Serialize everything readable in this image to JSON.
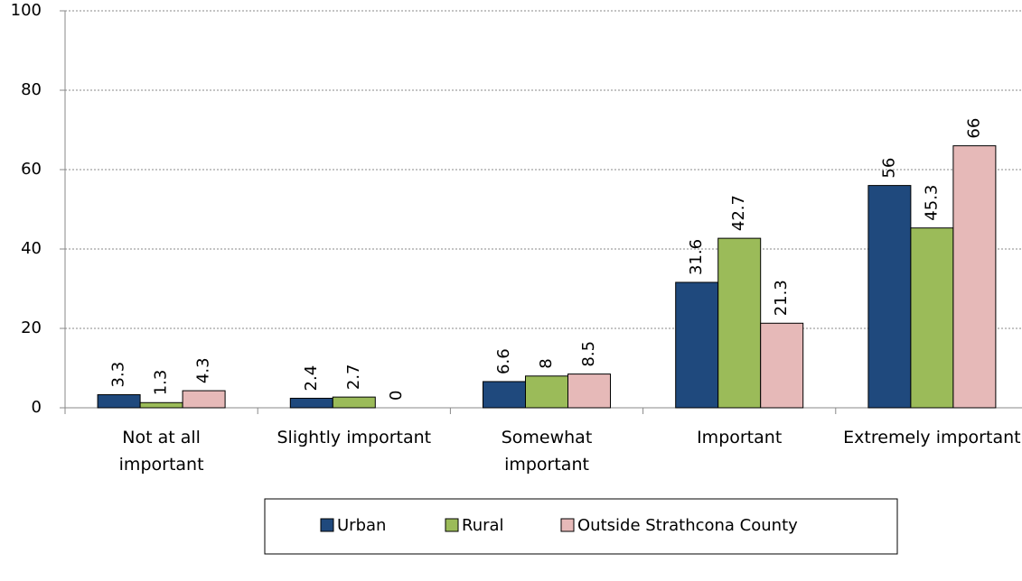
{
  "chart_data": {
    "type": "bar",
    "categories": [
      "Not at all important",
      "Slightly important",
      "Somewhat important",
      "Important",
      "Extremely important"
    ],
    "series": [
      {
        "name": "Urban",
        "color": "#1f497d",
        "values": [
          3.3,
          2.4,
          6.6,
          31.6,
          56
        ]
      },
      {
        "name": "Rural",
        "color": "#9bbb59",
        "values": [
          1.3,
          2.7,
          8,
          42.7,
          45.3
        ]
      },
      {
        "name": "Outside Strathcona County",
        "color": "#e6b9b8",
        "values": [
          4.3,
          0,
          8.5,
          21.3,
          66
        ]
      }
    ],
    "ylim": [
      0,
      100
    ],
    "yticks": [
      0,
      20,
      40,
      60,
      80,
      100
    ],
    "grid": true,
    "legend": "bottom"
  }
}
